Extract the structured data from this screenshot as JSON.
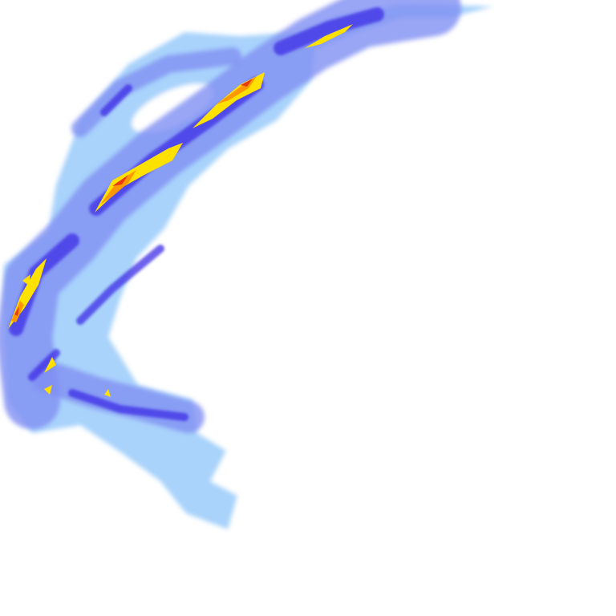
{
  "map": {
    "kind": "weather-radar-reflectivity",
    "background": "#ffffff",
    "intensity_colors": {
      "light": "#a9d3fb",
      "moderate": "#7f8ff2",
      "heavy": "#3c2fe6",
      "intense": "#ffe100",
      "very_intense": "#ff9800",
      "extreme": "#e83a10"
    }
  }
}
